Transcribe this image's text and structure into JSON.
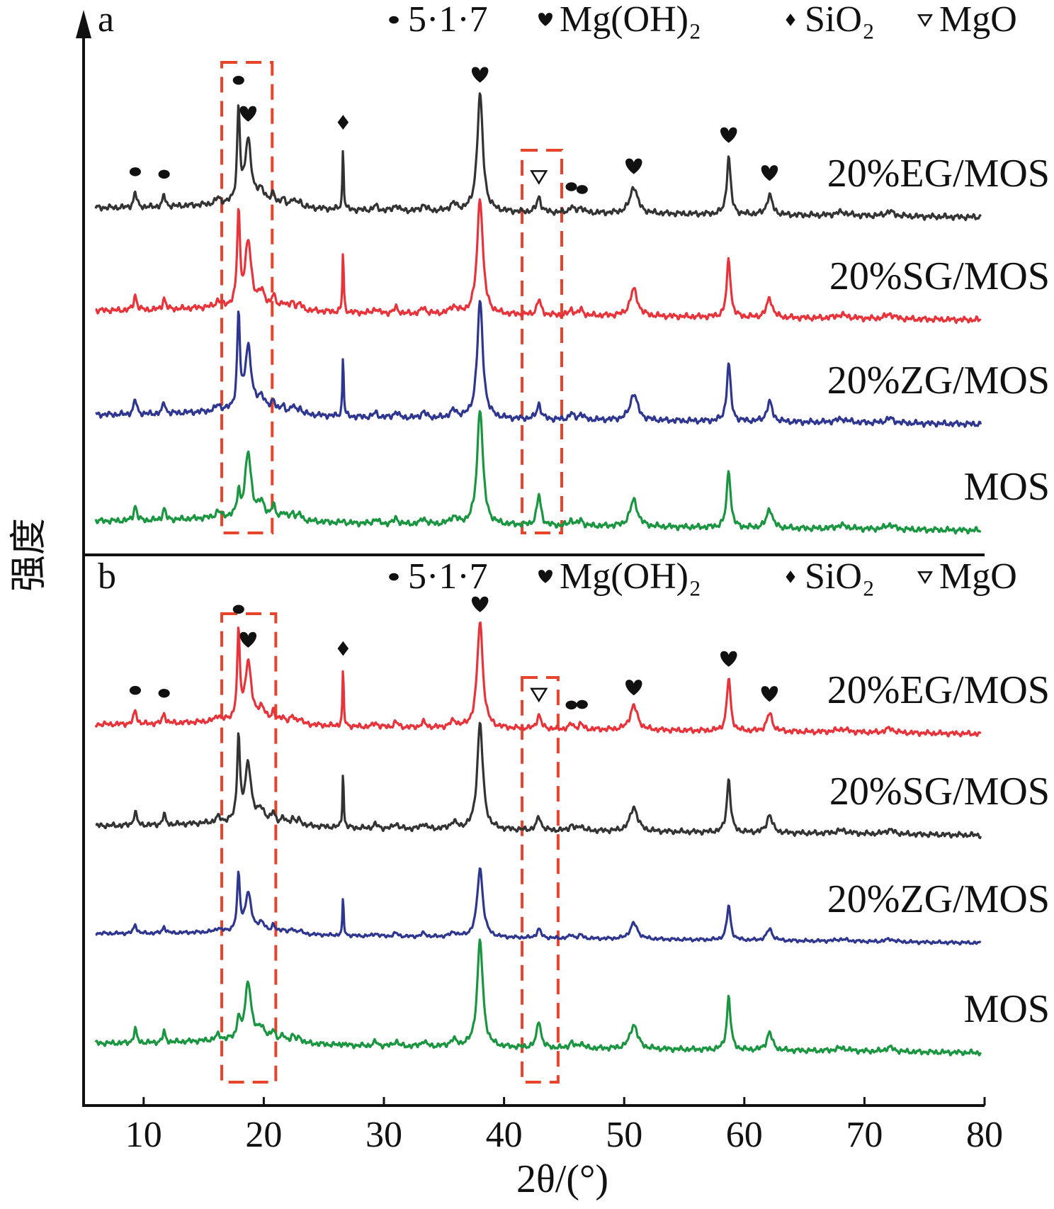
{
  "chart_data": [
    {
      "type": "line",
      "panel_label": "a",
      "xlabel": "2θ/(°)",
      "ylabel": "强度",
      "xlim": [
        5,
        80
      ],
      "xticks": [
        10,
        20,
        30,
        40,
        50,
        60,
        70,
        80
      ],
      "legend": [
        {
          "symbol": "circle",
          "label": "5·1·7"
        },
        {
          "symbol": "heart",
          "label": "Mg(OH)₂"
        },
        {
          "symbol": "diamond",
          "label": "SiO₂"
        },
        {
          "symbol": "triangle",
          "label": "MgO"
        }
      ],
      "highlight_ranges": [
        [
          16.5,
          20.7
        ],
        [
          41.5,
          44.8
        ]
      ],
      "series": [
        {
          "name": "20%EG/MOS",
          "color": "#333333",
          "peak_height": 1.0
        },
        {
          "name": "20%SG/MOS",
          "color": "#e8333a",
          "peak_height": 1.0
        },
        {
          "name": "20%ZG/MOS",
          "color": "#2e3690",
          "peak_height": 1.0
        },
        {
          "name": "MOS",
          "color": "#1a9641",
          "peak_height": 1.0
        }
      ],
      "peak_markers": [
        {
          "x": 9.3,
          "symbol": "circle",
          "series": "20%EG/MOS"
        },
        {
          "x": 11.7,
          "symbol": "circle",
          "series": "20%EG/MOS"
        },
        {
          "x": 17.9,
          "symbol": "circle",
          "series": "20%EG/MOS"
        },
        {
          "x": 18.7,
          "symbol": "heart",
          "series": "20%EG/MOS"
        },
        {
          "x": 26.6,
          "symbol": "diamond",
          "series": "20%EG/MOS"
        },
        {
          "x": 38.0,
          "symbol": "heart",
          "series": "20%EG/MOS"
        },
        {
          "x": 42.9,
          "symbol": "triangle",
          "series": "20%EG/MOS"
        },
        {
          "x": 45.6,
          "symbol": "circle",
          "series": "20%EG/MOS"
        },
        {
          "x": 46.5,
          "symbol": "circle",
          "series": "20%EG/MOS"
        },
        {
          "x": 50.8,
          "symbol": "heart",
          "series": "20%EG/MOS"
        },
        {
          "x": 58.7,
          "symbol": "heart",
          "series": "20%EG/MOS"
        },
        {
          "x": 62.1,
          "symbol": "heart",
          "series": "20%EG/MOS"
        }
      ]
    },
    {
      "type": "line",
      "panel_label": "b",
      "xlabel": "2θ/(°)",
      "ylabel": "强度",
      "xlim": [
        5,
        80
      ],
      "xticks": [
        10,
        20,
        30,
        40,
        50,
        60,
        70,
        80
      ],
      "legend": [
        {
          "symbol": "circle",
          "label": "5·1·7"
        },
        {
          "symbol": "heart",
          "label": "Mg(OH)₂"
        },
        {
          "symbol": "diamond",
          "label": "SiO₂"
        },
        {
          "symbol": "triangle",
          "label": "MgO"
        }
      ],
      "highlight_ranges": [
        [
          16.5,
          21.0
        ],
        [
          41.5,
          44.5
        ]
      ],
      "series": [
        {
          "name": "20%EG/MOS",
          "color": "#e8333a",
          "peak_height": 1.0
        },
        {
          "name": "20%SG/MOS",
          "color": "#333333",
          "peak_height": 1.0
        },
        {
          "name": "20%ZG/MOS",
          "color": "#2e3690",
          "peak_height": 0.65
        },
        {
          "name": "MOS",
          "color": "#1a9641",
          "peak_height": 1.0
        }
      ],
      "peak_markers": [
        {
          "x": 9.3,
          "symbol": "circle",
          "series": "20%EG/MOS"
        },
        {
          "x": 11.7,
          "symbol": "circle",
          "series": "20%EG/MOS"
        },
        {
          "x": 17.9,
          "symbol": "circle",
          "series": "20%EG/MOS"
        },
        {
          "x": 18.7,
          "symbol": "heart",
          "series": "20%EG/MOS"
        },
        {
          "x": 26.6,
          "symbol": "diamond",
          "series": "20%EG/MOS"
        },
        {
          "x": 38.0,
          "symbol": "heart",
          "series": "20%EG/MOS"
        },
        {
          "x": 42.9,
          "symbol": "triangle",
          "series": "20%EG/MOS"
        },
        {
          "x": 45.6,
          "symbol": "circle",
          "series": "20%EG/MOS"
        },
        {
          "x": 46.5,
          "symbol": "circle",
          "series": "20%EG/MOS"
        },
        {
          "x": 50.8,
          "symbol": "heart",
          "series": "20%EG/MOS"
        },
        {
          "x": 58.7,
          "symbol": "heart",
          "series": "20%EG/MOS"
        },
        {
          "x": 62.1,
          "symbol": "heart",
          "series": "20%EG/MOS"
        }
      ]
    }
  ]
}
